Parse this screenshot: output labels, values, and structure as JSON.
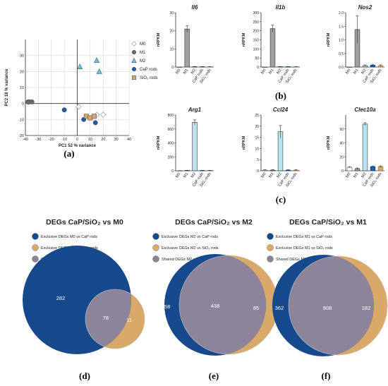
{
  "panel_labels": {
    "a": "(a)",
    "b": "(b)",
    "c": "(c)",
    "d": "(d)",
    "e": "(e)",
    "f": "(f)"
  },
  "colors": {
    "M0": "#ffffff",
    "M1": "#6b6b6b",
    "M2": "#5cc3d8",
    "CaP": "#1a5fa5",
    "SiO2": "#d4a86a",
    "venn_cap": "#164a8c",
    "venn_sio2": "#d8a968",
    "venn_shared": "#8e8499",
    "bar_M1": "#a0a0a0",
    "bar_M2": "#b7e4ee"
  },
  "chart_data": [
    {
      "id": "a",
      "type": "scatter",
      "title": "",
      "xlabel": "PC1 52 % variance",
      "ylabel": "PC2 18 % variance",
      "xlim": [
        -40,
        40
      ],
      "ylim": [
        -20,
        40
      ],
      "xticks": [
        -40,
        -30,
        -20,
        -10,
        0,
        10,
        20,
        30,
        40
      ],
      "yticks": [
        -20,
        -10,
        0,
        10,
        20,
        30
      ],
      "xtick_labels": [
        "-40",
        "-30",
        "-20",
        "-10",
        "0",
        "10",
        "20",
        "30",
        "40"
      ],
      "ytick_labels": [
        "-20",
        "-10",
        "0",
        "10",
        "20",
        "30"
      ],
      "reference_lines": {
        "x": 0,
        "y": 0
      },
      "legend": [
        {
          "name": "M0",
          "marker": "diamond",
          "color": "#ffffff"
        },
        {
          "name": "M1",
          "marker": "circle",
          "color": "#6b6b6b"
        },
        {
          "name": "M2",
          "marker": "triangle",
          "color": "#5cc3d8"
        },
        {
          "name": "CaP rods",
          "marker": "circle",
          "color": "#1a5fa5"
        },
        {
          "name": "SiO₂ rods",
          "marker": "square",
          "color": "#d4a86a"
        }
      ],
      "series": [
        {
          "name": "M0",
          "points": [
            [
              1,
              -2
            ],
            [
              15,
              -7
            ],
            [
              20,
              -7
            ]
          ]
        },
        {
          "name": "M1",
          "points": [
            [
              -38,
              1
            ],
            [
              -37,
              1
            ],
            [
              -35,
              1
            ]
          ]
        },
        {
          "name": "M2",
          "points": [
            [
              2,
              23
            ],
            [
              15,
              27
            ],
            [
              17,
              20
            ]
          ]
        },
        {
          "name": "CaP rods",
          "points": [
            [
              -10,
              -4
            ],
            [
              5,
              -10
            ],
            [
              14,
              -12
            ]
          ]
        },
        {
          "name": "SiO₂ rods",
          "points": [
            [
              7,
              -8
            ],
            [
              10,
              -9
            ],
            [
              13,
              -8
            ]
          ]
        }
      ]
    },
    {
      "id": "b1",
      "type": "bar",
      "title": "Il6",
      "ylabel": "nRPKM",
      "categories": [
        "M0",
        "M1",
        "M2",
        "CaP rods",
        "SiO₂ rods"
      ],
      "values": [
        0,
        21,
        0.2,
        0.2,
        0.2
      ],
      "errors": [
        0,
        1.8,
        0.1,
        0.1,
        0.1
      ],
      "ylim": [
        0,
        30
      ],
      "yticks": [
        0,
        10,
        20,
        30
      ]
    },
    {
      "id": "b2",
      "type": "bar",
      "title": "Il1b",
      "ylabel": "nRPKM",
      "categories": [
        "M0",
        "M1",
        "M2",
        "CaP rods",
        "SiO₂ rods"
      ],
      "values": [
        0,
        212,
        2,
        2,
        2
      ],
      "errors": [
        0,
        20,
        1,
        1,
        1
      ],
      "ylim": [
        0,
        300
      ],
      "yticks": [
        0,
        50,
        100,
        150,
        200,
        250,
        300
      ]
    },
    {
      "id": "b3",
      "type": "bar",
      "title": "Nos2",
      "ylabel": "nRPKM",
      "categories": [
        "M0",
        "M1",
        "M2",
        "CaP rods",
        "SiO₂ rods"
      ],
      "values": [
        0,
        1.38,
        0.05,
        0.07,
        0.05
      ],
      "errors": [
        0,
        0.5,
        0.03,
        0.03,
        0.03
      ],
      "ylim": [
        0,
        2.0
      ],
      "yticks": [
        0,
        0.5,
        1.0,
        1.5,
        2.0
      ],
      "ytick_labels": [
        "0.0",
        "0.5",
        "1.0",
        "1.5",
        "2.0"
      ]
    },
    {
      "id": "c1",
      "type": "bar",
      "title": "Arg1",
      "ylabel": "nRPKM",
      "categories": [
        "M0",
        "M1",
        "M2",
        "CaP rods",
        "SiO₂ rods"
      ],
      "values": [
        2,
        5,
        695,
        5,
        5
      ],
      "errors": [
        1,
        2,
        35,
        2,
        2
      ],
      "ylim": [
        0,
        800
      ],
      "yticks": [
        0,
        200,
        400,
        600,
        800
      ]
    },
    {
      "id": "c2",
      "type": "bar",
      "title": "Ccl24",
      "ylabel": "nRPKM",
      "categories": [
        "M0",
        "M1",
        "M2",
        "CaP rods",
        "SiO₂ rods"
      ],
      "values": [
        0.3,
        0.3,
        17.5,
        0.3,
        0.3
      ],
      "errors": [
        0.2,
        0.2,
        2.8,
        0.2,
        0.2
      ],
      "ylim": [
        0,
        25
      ],
      "yticks": [
        0,
        5,
        10,
        15,
        20,
        25
      ]
    },
    {
      "id": "c3",
      "type": "bar",
      "title": "Clec10a",
      "ylabel": "nRPKM",
      "categories": [
        "M0",
        "M1",
        "M2",
        "CaP rods",
        "SiO₂ rods"
      ],
      "values": [
        5,
        3,
        67,
        6,
        6
      ],
      "errors": [
        1,
        1,
        2,
        1,
        1
      ],
      "ylim": [
        0,
        80
      ],
      "yticks": [
        0,
        20,
        40,
        60
      ]
    },
    {
      "id": "d",
      "type": "venn",
      "title": "DEGs CaP/SiO₂ vs M0",
      "legend": [
        "Exclusive DEGs M0 vs CaP rods",
        "Exclusive DEGs M0 vs SiO₂ rods",
        "Shared DEGs M0 vs CaP/SiO₂ rods"
      ],
      "values": {
        "cap_only": 282,
        "shared": 78,
        "sio2_only": 11
      },
      "labels": [
        "282",
        "78",
        "11"
      ]
    },
    {
      "id": "e",
      "type": "venn",
      "title": "DEGs CaP/SiO₂ vs M2",
      "legend": [
        "Exclusive DEGs M2 vs CaP rods",
        "Exclusive DEGs M2 vs SiO₂ rods",
        "Shared DEGs M2 vs CaP/SiO₂ rods"
      ],
      "values": {
        "cap_only": 158,
        "shared": 438,
        "sio2_only": 85
      },
      "labels": [
        "158",
        "438",
        "85"
      ]
    },
    {
      "id": "f",
      "type": "venn",
      "title": "DEGs CaP/SiO₂ vs M1",
      "legend": [
        "Exclusive DEGs M1 vs CaP rods",
        "Exclusive DEGs M1 vs SiO₂ rods",
        "Shared DEGs M1 vs CaP/SiO₂ rods"
      ],
      "values": {
        "cap_only": 362,
        "shared": 908,
        "sio2_only": 182
      },
      "labels": [
        "362",
        "908",
        "182"
      ]
    }
  ]
}
